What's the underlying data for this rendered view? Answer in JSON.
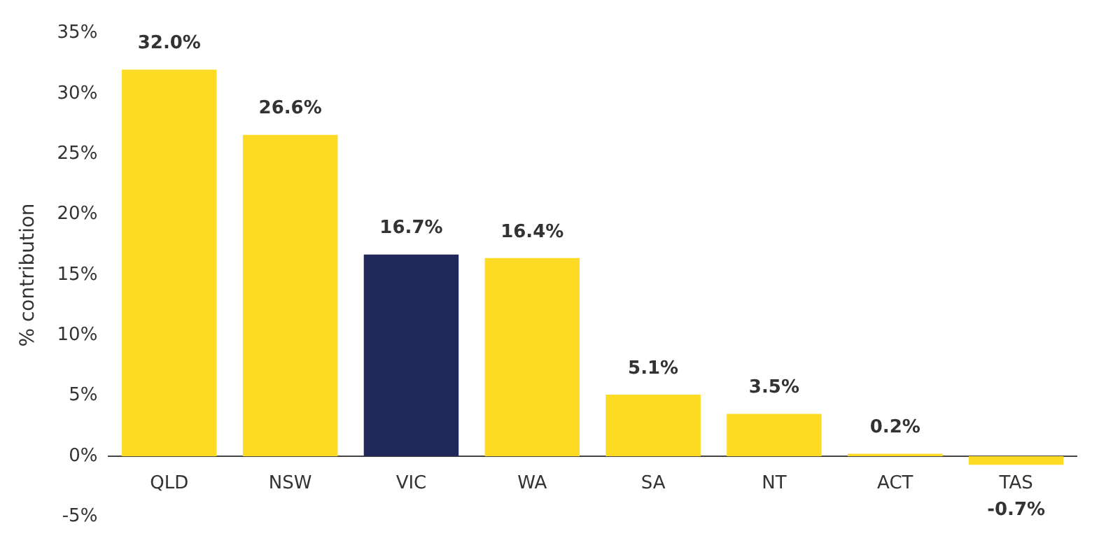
{
  "chart_data": {
    "type": "bar",
    "ylabel": "% contribution",
    "categories": [
      "QLD",
      "NSW",
      "VIC",
      "WA",
      "SA",
      "NT",
      "ACT",
      "TAS"
    ],
    "values": [
      32.0,
      26.6,
      16.7,
      16.4,
      5.1,
      3.5,
      0.2,
      -0.7
    ],
    "colors": [
      "#fdda24",
      "#fdda24",
      "#1f2858",
      "#fdda24",
      "#fdda24",
      "#fdda24",
      "#fdda24",
      "#fdda24"
    ],
    "value_labels": [
      "32.0%",
      "26.6%",
      "16.7%",
      "16.4%",
      "5.1%",
      "3.5%",
      "0.2%",
      "-0.7%"
    ],
    "ylim": [
      -5,
      35
    ],
    "yticks": [
      {
        "value": -5,
        "label": "-5%"
      },
      {
        "value": 0,
        "label": "0%"
      },
      {
        "value": 5,
        "label": "5%"
      },
      {
        "value": 10,
        "label": "10%"
      },
      {
        "value": 15,
        "label": "15%"
      },
      {
        "value": 20,
        "label": "20%"
      },
      {
        "value": 25,
        "label": "25%"
      },
      {
        "value": 30,
        "label": "30%"
      },
      {
        "value": 35,
        "label": "35%"
      }
    ],
    "grid": false,
    "legend": false
  }
}
